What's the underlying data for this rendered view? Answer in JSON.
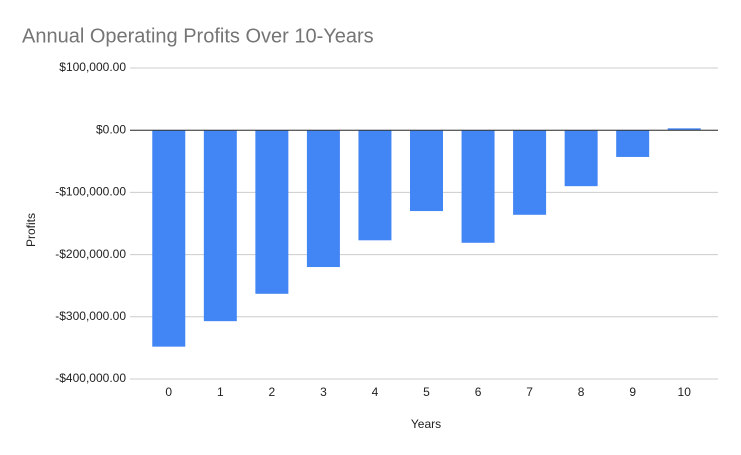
{
  "chart_data": {
    "type": "bar",
    "title": "Annual Operating Profits Over 10-Years",
    "x_label": "Years",
    "y_label": "Profits",
    "categories": [
      "0",
      "1",
      "2",
      "3",
      "4",
      "5",
      "6",
      "7",
      "8",
      "9",
      "10"
    ],
    "values": [
      -348000,
      -307000,
      -263000,
      -220000,
      -177000,
      -130000,
      -181000,
      -136000,
      -90000,
      -43000,
      3000
    ],
    "color": "#4285f4",
    "ylim": [
      -400000,
      100000
    ],
    "yticks": [
      {
        "value": -400000,
        "label": "-$400,000.00"
      },
      {
        "value": -300000,
        "label": "-$300,000.00"
      },
      {
        "value": -200000,
        "label": "-$200,000.00"
      },
      {
        "value": -100000,
        "label": "-$100,000.00"
      },
      {
        "value": 0,
        "label": "$0.00"
      },
      {
        "value": 100000,
        "label": "$100,000.00"
      }
    ],
    "grid": true
  }
}
